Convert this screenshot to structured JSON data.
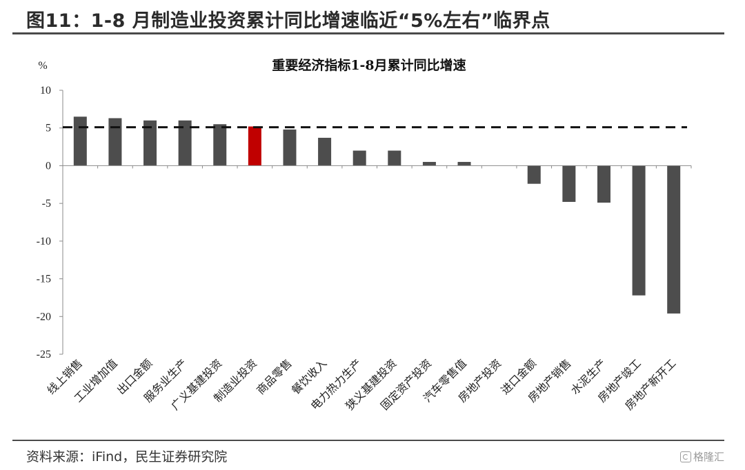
{
  "figure_title": "图11：1-8 月制造业投资累计同比增速临近“5%左右”临界点",
  "source": "资料来源：iFind，民生证券研究院",
  "watermark": "格隆汇",
  "colors": {
    "bar": "#4d4d4d",
    "highlight": "#c00000",
    "reference_line": "#111111"
  },
  "chart_data": {
    "type": "bar",
    "title": "重要经济指标1-8月累计同比增速",
    "ylabel": "%",
    "xlabel": "",
    "ylim": [
      -25,
      10
    ],
    "yticks": [
      10,
      5,
      0,
      -5,
      -10,
      -15,
      -20,
      -25
    ],
    "grid": false,
    "legend": "none",
    "reference_line": 5.1,
    "highlight_category": "制造业投资",
    "categories": [
      "线上销售",
      "工业增加值",
      "出口金额",
      "服务业生产",
      "广义基建投资",
      "制造业投资",
      "商品零售",
      "餐饮收入",
      "电力热力生产",
      "狭义基建投资",
      "固定资产投资",
      "汽车零售值",
      "房地产投资",
      "进口金额",
      "房地产销售",
      "水泥生产",
      "房地产竣工",
      "房地产新开工"
    ],
    "values": [
      6.5,
      6.3,
      6.0,
      6.0,
      5.5,
      5.2,
      4.8,
      3.7,
      2.0,
      2.0,
      0.5,
      0.5,
      0.0,
      -2.4,
      -4.8,
      -4.9,
      -17.2,
      -19.6
    ]
  }
}
